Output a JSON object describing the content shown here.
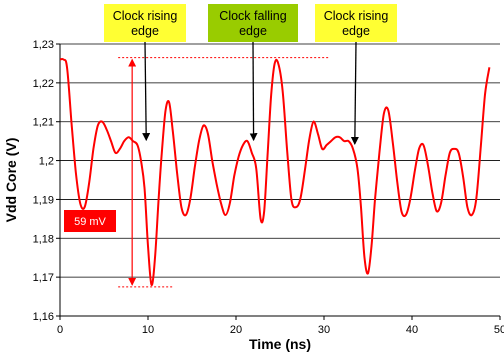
{
  "chart_data": {
    "type": "line",
    "xlabel": "Time (ns)",
    "ylabel": "Vdd Core (V)",
    "xlim": [
      0,
      50
    ],
    "ylim": [
      1.16,
      1.23
    ],
    "x_ticks": [
      "0",
      "10",
      "20",
      "30",
      "40",
      "50"
    ],
    "y_ticks": [
      "1,16",
      "1,17",
      "1,18",
      "1,19",
      "1,2",
      "1,21",
      "1,22",
      "1,23"
    ],
    "grid": "horizontal",
    "series": [
      {
        "color": "#ff0000",
        "x": [
          0,
          0.4,
          0.8,
          1.3,
          1.8,
          2.3,
          2.8,
          3.3,
          3.8,
          4.3,
          4.8,
          5.3,
          5.8,
          6.3,
          6.8,
          7.3,
          7.8,
          8.3,
          8.8,
          9.2,
          9.6,
          10.0,
          10.4,
          10.8,
          11.2,
          11.6,
          12.0,
          12.4,
          12.8,
          13.3,
          13.8,
          14.3,
          14.8,
          15.3,
          15.8,
          16.3,
          16.8,
          17.3,
          17.8,
          18.3,
          18.8,
          19.3,
          19.8,
          20.3,
          20.8,
          21.3,
          21.8,
          22.3,
          22.8,
          23.2,
          23.6,
          24.0,
          24.4,
          24.8,
          25.3,
          25.8,
          26.3,
          26.8,
          27.3,
          27.8,
          28.3,
          28.8,
          29.3,
          29.8,
          30.3,
          30.8,
          31.3,
          31.8,
          32.3,
          32.8,
          33.3,
          33.8,
          34.2,
          34.6,
          35.0,
          35.4,
          35.8,
          36.3,
          36.8,
          37.3,
          37.8,
          38.3,
          38.8,
          39.3,
          39.8,
          40.3,
          40.8,
          41.3,
          41.8,
          42.3,
          42.8,
          43.3,
          43.8,
          44.3,
          44.8,
          45.3,
          45.8,
          46.3,
          46.8,
          47.3,
          47.8,
          48.3,
          48.8
        ],
        "values": [
          1.226,
          1.226,
          1.224,
          1.21,
          1.197,
          1.189,
          1.188,
          1.194,
          1.203,
          1.209,
          1.21,
          1.208,
          1.205,
          1.202,
          1.203,
          1.205,
          1.206,
          1.205,
          1.204,
          1.2,
          1.193,
          1.178,
          1.168,
          1.175,
          1.19,
          1.203,
          1.213,
          1.215,
          1.208,
          1.197,
          1.188,
          1.186,
          1.19,
          1.198,
          1.205,
          1.209,
          1.207,
          1.2,
          1.194,
          1.189,
          1.186,
          1.189,
          1.196,
          1.201,
          1.204,
          1.205,
          1.202,
          1.198,
          1.185,
          1.187,
          1.202,
          1.217,
          1.225,
          1.225,
          1.218,
          1.203,
          1.19,
          1.188,
          1.19,
          1.197,
          1.205,
          1.21,
          1.207,
          1.203,
          1.204,
          1.205,
          1.206,
          1.206,
          1.205,
          1.205,
          1.203,
          1.198,
          1.188,
          1.175,
          1.171,
          1.178,
          1.19,
          1.202,
          1.212,
          1.213,
          1.205,
          1.195,
          1.187,
          1.186,
          1.19,
          1.197,
          1.203,
          1.204,
          1.199,
          1.192,
          1.187,
          1.189,
          1.196,
          1.202,
          1.203,
          1.202,
          1.196,
          1.188,
          1.186,
          1.19,
          1.203,
          1.217,
          1.224
        ]
      }
    ],
    "annotations": [
      {
        "text_lines": [
          "Clock rising",
          "edge"
        ],
        "fill": "#ffff33",
        "x": 9.8,
        "y": 1.2045
      },
      {
        "text_lines": [
          "Clock falling",
          "edge"
        ],
        "fill": "#99cc00",
        "x": 22.0,
        "y": 1.2045
      },
      {
        "text_lines": [
          "Clock rising",
          "edge"
        ],
        "fill": "#ffff33",
        "x": 33.5,
        "y": 1.2035
      }
    ],
    "measurement": {
      "label": "59 mV",
      "color": "#ff0000",
      "x": 8.2,
      "y_top": 1.2265,
      "y_bottom": 1.1675,
      "top_ref_x_end": 30.5,
      "bottom_ref_x_end": 12.8
    }
  }
}
